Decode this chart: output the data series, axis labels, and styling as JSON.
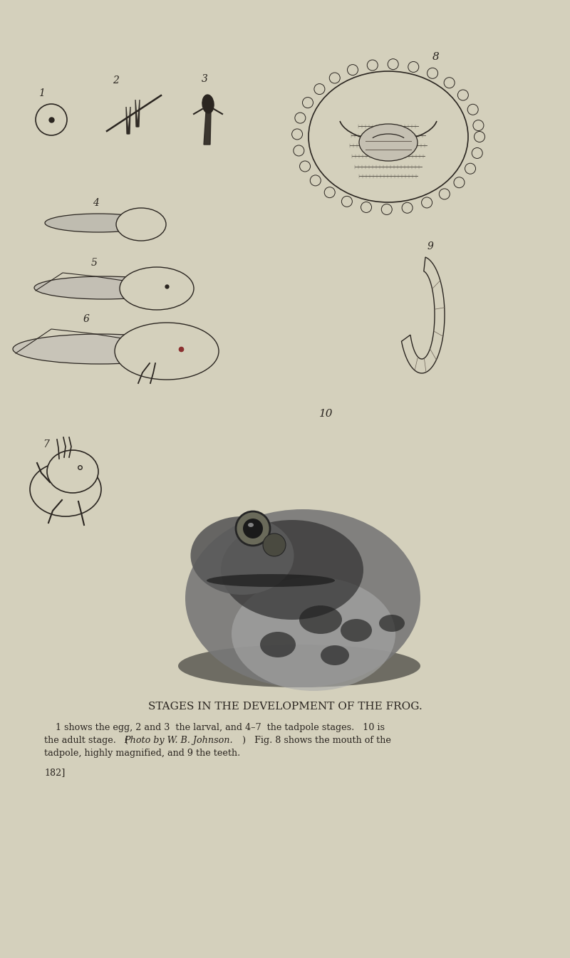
{
  "bg_color": "#d4d0bc",
  "title": "STAGES IN THE DEVELOPMENT OF THE FROG.",
  "caption_line1": "    1 shows the egg, 2 and 3  the larval, and 4–7  the tadpole stages.   10 is",
  "caption_line2": "the adult stage.   (​Photo by W. B. Johnson.)   Fig. 8 shows the mouth of the",
  "caption_line3": "tadpole, highly magnified, and 9 the teeth.",
  "page_num": "182]",
  "fig_width": 8.0,
  "fig_height": 13.45,
  "dpi": 100
}
